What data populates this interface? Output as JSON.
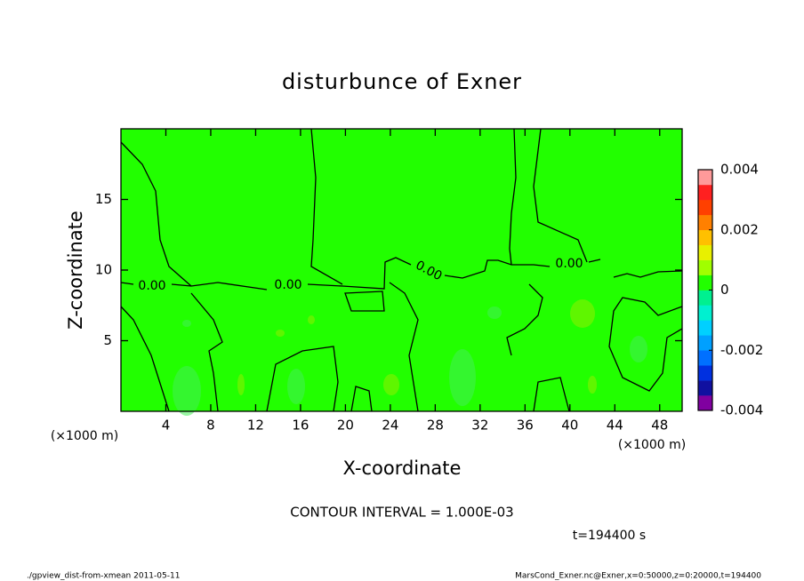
{
  "chart_data": {
    "type": "contour",
    "title": "disturbunce of Exner",
    "x_label": "X-coordinate",
    "y_label": "Z-coordinate",
    "x_unit": "(×1000 m)",
    "xlim": [
      0,
      50
    ],
    "xticks": [
      4,
      8,
      12,
      16,
      20,
      24,
      28,
      32,
      36,
      40,
      44,
      48
    ],
    "ylim": [
      0,
      20
    ],
    "yticks": [
      5,
      10,
      15
    ],
    "field_color": "#22ff00",
    "colorbar": {
      "lim": [
        -0.004,
        0.004
      ],
      "ticks": [
        -0.004,
        -0.002,
        0,
        0.002,
        0.004
      ],
      "colors": [
        "#8000a0",
        "#1010a0",
        "#0030e0",
        "#0070ff",
        "#00a0ff",
        "#00d0ff",
        "#00f0d0",
        "#00f090",
        "#22ff00",
        "#a0ff00",
        "#e8f000",
        "#ffc000",
        "#ff8000",
        "#ff4000",
        "#ff2020",
        "#ff9a9a"
      ]
    },
    "contour_labels": [
      "0.00",
      "0.00",
      "0.00",
      "0.00"
    ],
    "contour_interval": "CONTOUR INTERVAL = 1.000E-03",
    "time_label": "t=194400 s",
    "footer_left": "./gpview_dist-from-xmean  2011-05-11",
    "footer_right": "MarsCond_Exner.nc@Exner,x=0:50000,z=0:20000,t=194400"
  }
}
